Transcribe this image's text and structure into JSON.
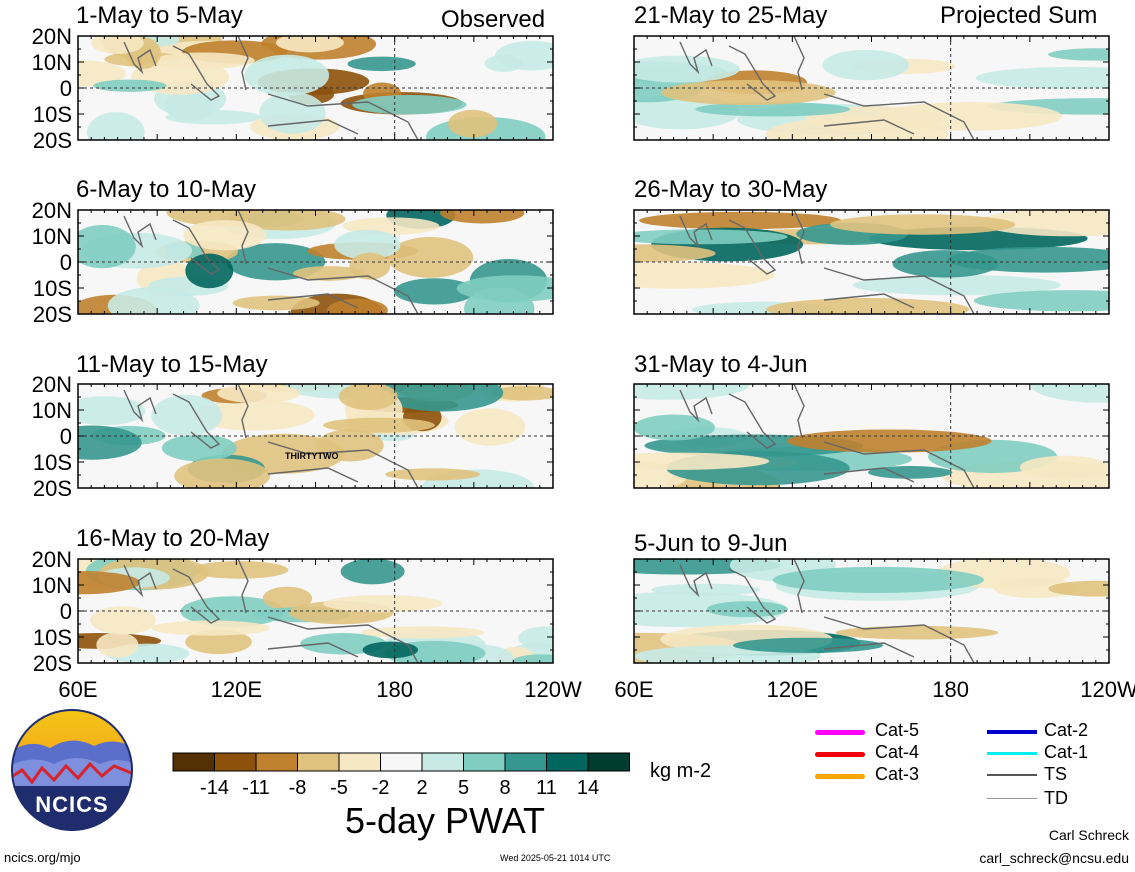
{
  "header": {
    "left_label": "Observed",
    "right_label": "Projected Sum"
  },
  "panels": [
    {
      "title": "1-May to 5-May"
    },
    {
      "title": "6-May to 10-May"
    },
    {
      "title": "11-May to 15-May"
    },
    {
      "title": "16-May to 20-May"
    },
    {
      "title": "21-May to 25-May"
    },
    {
      "title": "26-May to 30-May"
    },
    {
      "title": "31-May to 4-Jun"
    },
    {
      "title": "5-Jun to 9-Jun"
    }
  ],
  "axes": {
    "y_ticks": [
      "20N",
      "10N",
      "0",
      "10S",
      "20S"
    ],
    "x_ticks": [
      "60E",
      "120E",
      "180",
      "120W"
    ]
  },
  "storm_label": "THIRTYTWO",
  "colorbar": {
    "labels": [
      "-14",
      "-11",
      "-8",
      "-5",
      "-2",
      "2",
      "5",
      "8",
      "11",
      "14"
    ],
    "colors": [
      "#543005",
      "#8c510a",
      "#bf812d",
      "#dfc27d",
      "#f6e8c3",
      "#f7f7f7",
      "#c7eae5",
      "#80cdc1",
      "#35978f",
      "#01665e",
      "#003c30"
    ],
    "units": "kg m-2",
    "title": "5-day PWAT"
  },
  "legend": [
    {
      "label": "Cat-5",
      "color": "#ff00ff"
    },
    {
      "label": "Cat-2",
      "color": "#0000cc"
    },
    {
      "label": "Cat-4",
      "color": "#ee0000"
    },
    {
      "label": "Cat-1",
      "color": "#00eeee"
    },
    {
      "label": "Cat-3",
      "color": "#ffa500"
    },
    {
      "label": "TS",
      "color": "#555555"
    },
    {
      "label": "TD",
      "color": "#999999"
    }
  ],
  "logo": {
    "text": "NCICS"
  },
  "footer": {
    "website": "ncics.org/mjo",
    "timestamp": "Wed 2025-05-21 1014 UTC",
    "author": "Carl Schreck",
    "email": "carl_schreck@ncsu.edu"
  },
  "chart_data": {
    "type": "heatmap",
    "title": "5-day PWAT",
    "units": "kg m-2",
    "x_range": [
      "60E",
      "120W"
    ],
    "y_range": [
      "20S",
      "20N"
    ],
    "color_levels": [
      -14,
      -11,
      -8,
      -5,
      -2,
      2,
      5,
      8,
      11,
      14
    ],
    "panel_titles_observed": [
      "1-May to 5-May",
      "6-May to 10-May",
      "11-May to 15-May",
      "16-May to 20-May"
    ],
    "panel_titles_projected": [
      "21-May to 25-May",
      "26-May to 30-May",
      "31-May to 4-Jun",
      "5-Jun to 9-Jun"
    ]
  }
}
